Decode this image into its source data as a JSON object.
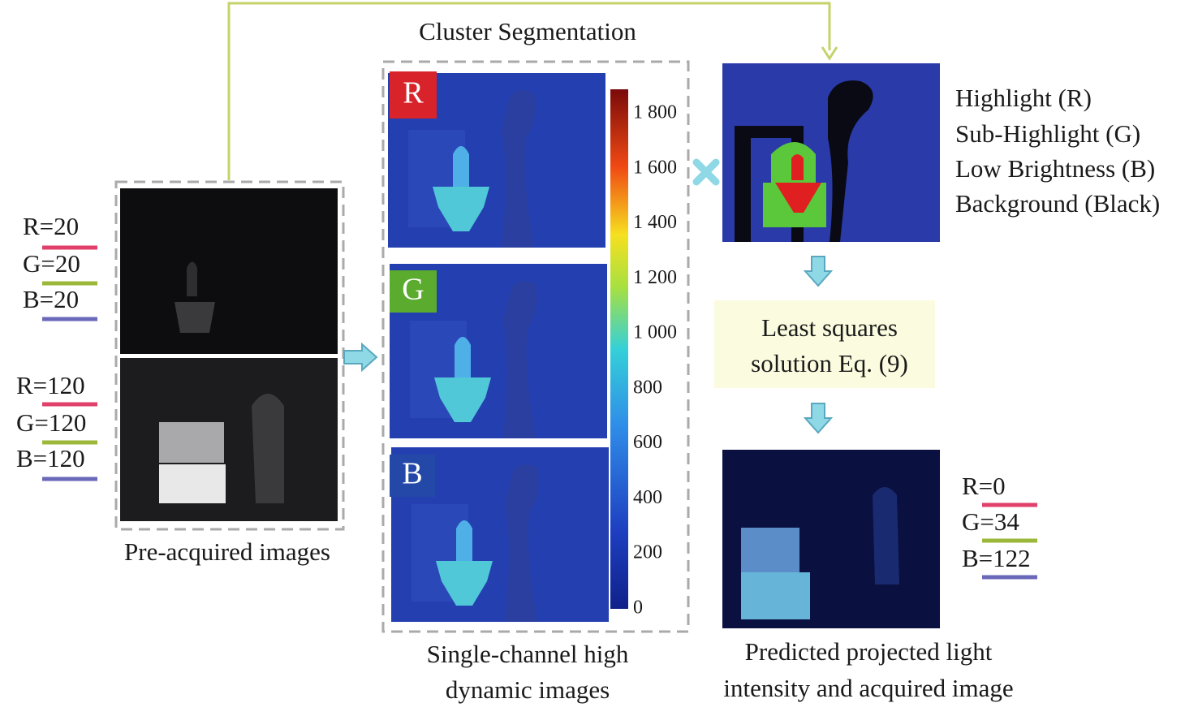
{
  "title": "Cluster Segmentation",
  "pre_acquired": {
    "caption": "Pre-acquired images",
    "image_1_labels": [
      "R=20",
      "G=20",
      "B=20"
    ],
    "image_2_labels": [
      "R=120",
      "G=120",
      "B=120"
    ]
  },
  "single_channel": {
    "caption_line_1": "Single-channel high",
    "caption_line_2": "dynamic images",
    "panels": [
      "R",
      "G",
      "B"
    ],
    "colorbar_ticks": [
      "1 800",
      "1 600",
      "1 400",
      "1 200",
      "1 000",
      "800",
      "600",
      "400",
      "200",
      "0"
    ]
  },
  "segmentation_legend": [
    "Highlight (R)",
    "Sub-Highlight (G)",
    "Low Brightness (B)",
    "Background (Black)"
  ],
  "solver": {
    "line_1": "Least squares",
    "line_2": "solution Eq. (9)"
  },
  "prediction": {
    "labels": [
      "R=0",
      "G=34",
      "B=122"
    ],
    "caption_line_1": "Predicted projected light",
    "caption_line_2": "intensity and acquired image"
  }
}
